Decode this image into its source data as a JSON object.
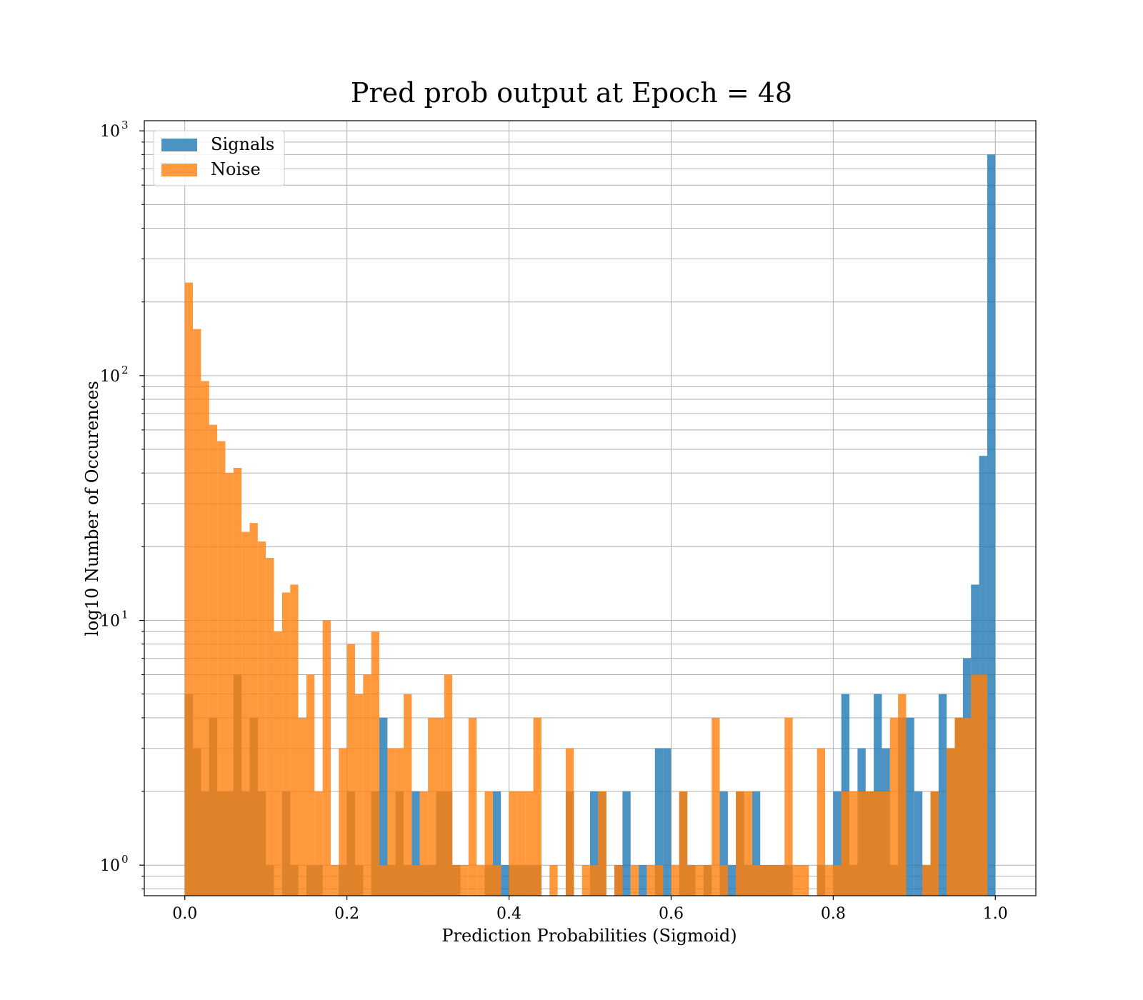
{
  "chart_data": {
    "type": "bar",
    "title": "Pred prob output at Epoch = 48",
    "xlabel": "Prediction Probabilities (Sigmoid)",
    "ylabel": "log10 Number of Occurences",
    "xlim": [
      -0.05,
      1.05
    ],
    "ylim": [
      0.75,
      1100
    ],
    "yscale": "log",
    "grid": true,
    "legend_position": "top-left",
    "bin_width": 0.01,
    "x_ticks": [
      0.0,
      0.2,
      0.4,
      0.6,
      0.8,
      1.0
    ],
    "x_tick_labels": [
      "0.0",
      "0.2",
      "0.4",
      "0.6",
      "0.8",
      "1.0"
    ],
    "y_ticks": [
      {
        "value": 1,
        "base": "10",
        "exp": "0"
      },
      {
        "value": 10,
        "base": "10",
        "exp": "1"
      },
      {
        "value": 100,
        "base": "10",
        "exp": "2"
      },
      {
        "value": 1000,
        "base": "10",
        "exp": "3"
      }
    ],
    "colors": {
      "Signals": "#1f77b4",
      "Noise": "#ff7f0e",
      "overlap": "#df8229"
    },
    "series": [
      {
        "name": "Signals",
        "color": "#1f77b4",
        "bins": [
          [
            0.0,
            5
          ],
          [
            0.01,
            3
          ],
          [
            0.02,
            2
          ],
          [
            0.03,
            4
          ],
          [
            0.04,
            2
          ],
          [
            0.05,
            2
          ],
          [
            0.06,
            6
          ],
          [
            0.07,
            2
          ],
          [
            0.08,
            4
          ],
          [
            0.09,
            2
          ],
          [
            0.1,
            1
          ],
          [
            0.12,
            2
          ],
          [
            0.13,
            1
          ],
          [
            0.15,
            1
          ],
          [
            0.16,
            1
          ],
          [
            0.19,
            1
          ],
          [
            0.2,
            2
          ],
          [
            0.21,
            1
          ],
          [
            0.23,
            2
          ],
          [
            0.24,
            4
          ],
          [
            0.25,
            1
          ],
          [
            0.26,
            2
          ],
          [
            0.27,
            1
          ],
          [
            0.28,
            2
          ],
          [
            0.29,
            1
          ],
          [
            0.3,
            1
          ],
          [
            0.31,
            2
          ],
          [
            0.32,
            2
          ],
          [
            0.33,
            1
          ],
          [
            0.37,
            1
          ],
          [
            0.38,
            2
          ],
          [
            0.39,
            1
          ],
          [
            0.4,
            1
          ],
          [
            0.41,
            1
          ],
          [
            0.42,
            1
          ],
          [
            0.43,
            1
          ],
          [
            0.47,
            2
          ],
          [
            0.5,
            2
          ],
          [
            0.51,
            2
          ],
          [
            0.53,
            1
          ],
          [
            0.54,
            2
          ],
          [
            0.56,
            1
          ],
          [
            0.58,
            3
          ],
          [
            0.59,
            3
          ],
          [
            0.61,
            2
          ],
          [
            0.62,
            1
          ],
          [
            0.64,
            1
          ],
          [
            0.66,
            2
          ],
          [
            0.67,
            1
          ],
          [
            0.68,
            2
          ],
          [
            0.69,
            1
          ],
          [
            0.7,
            2
          ],
          [
            0.71,
            1
          ],
          [
            0.72,
            1
          ],
          [
            0.73,
            1
          ],
          [
            0.74,
            1
          ],
          [
            0.78,
            1
          ],
          [
            0.8,
            2
          ],
          [
            0.81,
            5
          ],
          [
            0.82,
            1
          ],
          [
            0.83,
            3
          ],
          [
            0.84,
            2
          ],
          [
            0.85,
            5
          ],
          [
            0.86,
            3
          ],
          [
            0.87,
            1
          ],
          [
            0.88,
            4
          ],
          [
            0.89,
            4
          ],
          [
            0.9,
            2
          ],
          [
            0.91,
            1
          ],
          [
            0.92,
            2
          ],
          [
            0.93,
            5
          ],
          [
            0.94,
            3
          ],
          [
            0.95,
            4
          ],
          [
            0.96,
            7
          ],
          [
            0.97,
            14
          ],
          [
            0.98,
            47
          ],
          [
            0.99,
            800
          ]
        ]
      },
      {
        "name": "Noise",
        "color": "#ff7f0e",
        "bins": [
          [
            0.0,
            240
          ],
          [
            0.01,
            155
          ],
          [
            0.02,
            95
          ],
          [
            0.03,
            63
          ],
          [
            0.04,
            54
          ],
          [
            0.05,
            40
          ],
          [
            0.06,
            42
          ],
          [
            0.07,
            23
          ],
          [
            0.08,
            25
          ],
          [
            0.09,
            21
          ],
          [
            0.1,
            18
          ],
          [
            0.11,
            9
          ],
          [
            0.12,
            13
          ],
          [
            0.13,
            14
          ],
          [
            0.14,
            4
          ],
          [
            0.15,
            6
          ],
          [
            0.16,
            2
          ],
          [
            0.17,
            10
          ],
          [
            0.18,
            1
          ],
          [
            0.19,
            3
          ],
          [
            0.2,
            8
          ],
          [
            0.21,
            5
          ],
          [
            0.22,
            6
          ],
          [
            0.23,
            9
          ],
          [
            0.24,
            1
          ],
          [
            0.25,
            3
          ],
          [
            0.26,
            3
          ],
          [
            0.27,
            5
          ],
          [
            0.28,
            1
          ],
          [
            0.29,
            2
          ],
          [
            0.3,
            4
          ],
          [
            0.31,
            4
          ],
          [
            0.32,
            6
          ],
          [
            0.33,
            1
          ],
          [
            0.34,
            1
          ],
          [
            0.35,
            4
          ],
          [
            0.36,
            1
          ],
          [
            0.37,
            2
          ],
          [
            0.38,
            1
          ],
          [
            0.4,
            2
          ],
          [
            0.41,
            2
          ],
          [
            0.42,
            2
          ],
          [
            0.43,
            4
          ],
          [
            0.45,
            1
          ],
          [
            0.47,
            3
          ],
          [
            0.49,
            1
          ],
          [
            0.5,
            1
          ],
          [
            0.51,
            2
          ],
          [
            0.53,
            1
          ],
          [
            0.55,
            1
          ],
          [
            0.57,
            1
          ],
          [
            0.58,
            1
          ],
          [
            0.6,
            1
          ],
          [
            0.61,
            2
          ],
          [
            0.62,
            1
          ],
          [
            0.63,
            1
          ],
          [
            0.64,
            1
          ],
          [
            0.65,
            4
          ],
          [
            0.66,
            1
          ],
          [
            0.68,
            2
          ],
          [
            0.69,
            2
          ],
          [
            0.7,
            1
          ],
          [
            0.71,
            1
          ],
          [
            0.72,
            1
          ],
          [
            0.73,
            1
          ],
          [
            0.74,
            4
          ],
          [
            0.75,
            1
          ],
          [
            0.76,
            1
          ],
          [
            0.78,
            3
          ],
          [
            0.79,
            1
          ],
          [
            0.8,
            1
          ],
          [
            0.81,
            2
          ],
          [
            0.82,
            2
          ],
          [
            0.83,
            2
          ],
          [
            0.84,
            2
          ],
          [
            0.85,
            2
          ],
          [
            0.86,
            2
          ],
          [
            0.87,
            4
          ],
          [
            0.88,
            5
          ],
          [
            0.91,
            1
          ],
          [
            0.92,
            2
          ],
          [
            0.94,
            3
          ],
          [
            0.95,
            4
          ],
          [
            0.96,
            4
          ],
          [
            0.97,
            6
          ],
          [
            0.98,
            6
          ]
        ]
      }
    ],
    "legend": [
      {
        "label": "Signals",
        "color": "#1f77b4"
      },
      {
        "label": "Noise",
        "color": "#ff7f0e"
      }
    ]
  }
}
